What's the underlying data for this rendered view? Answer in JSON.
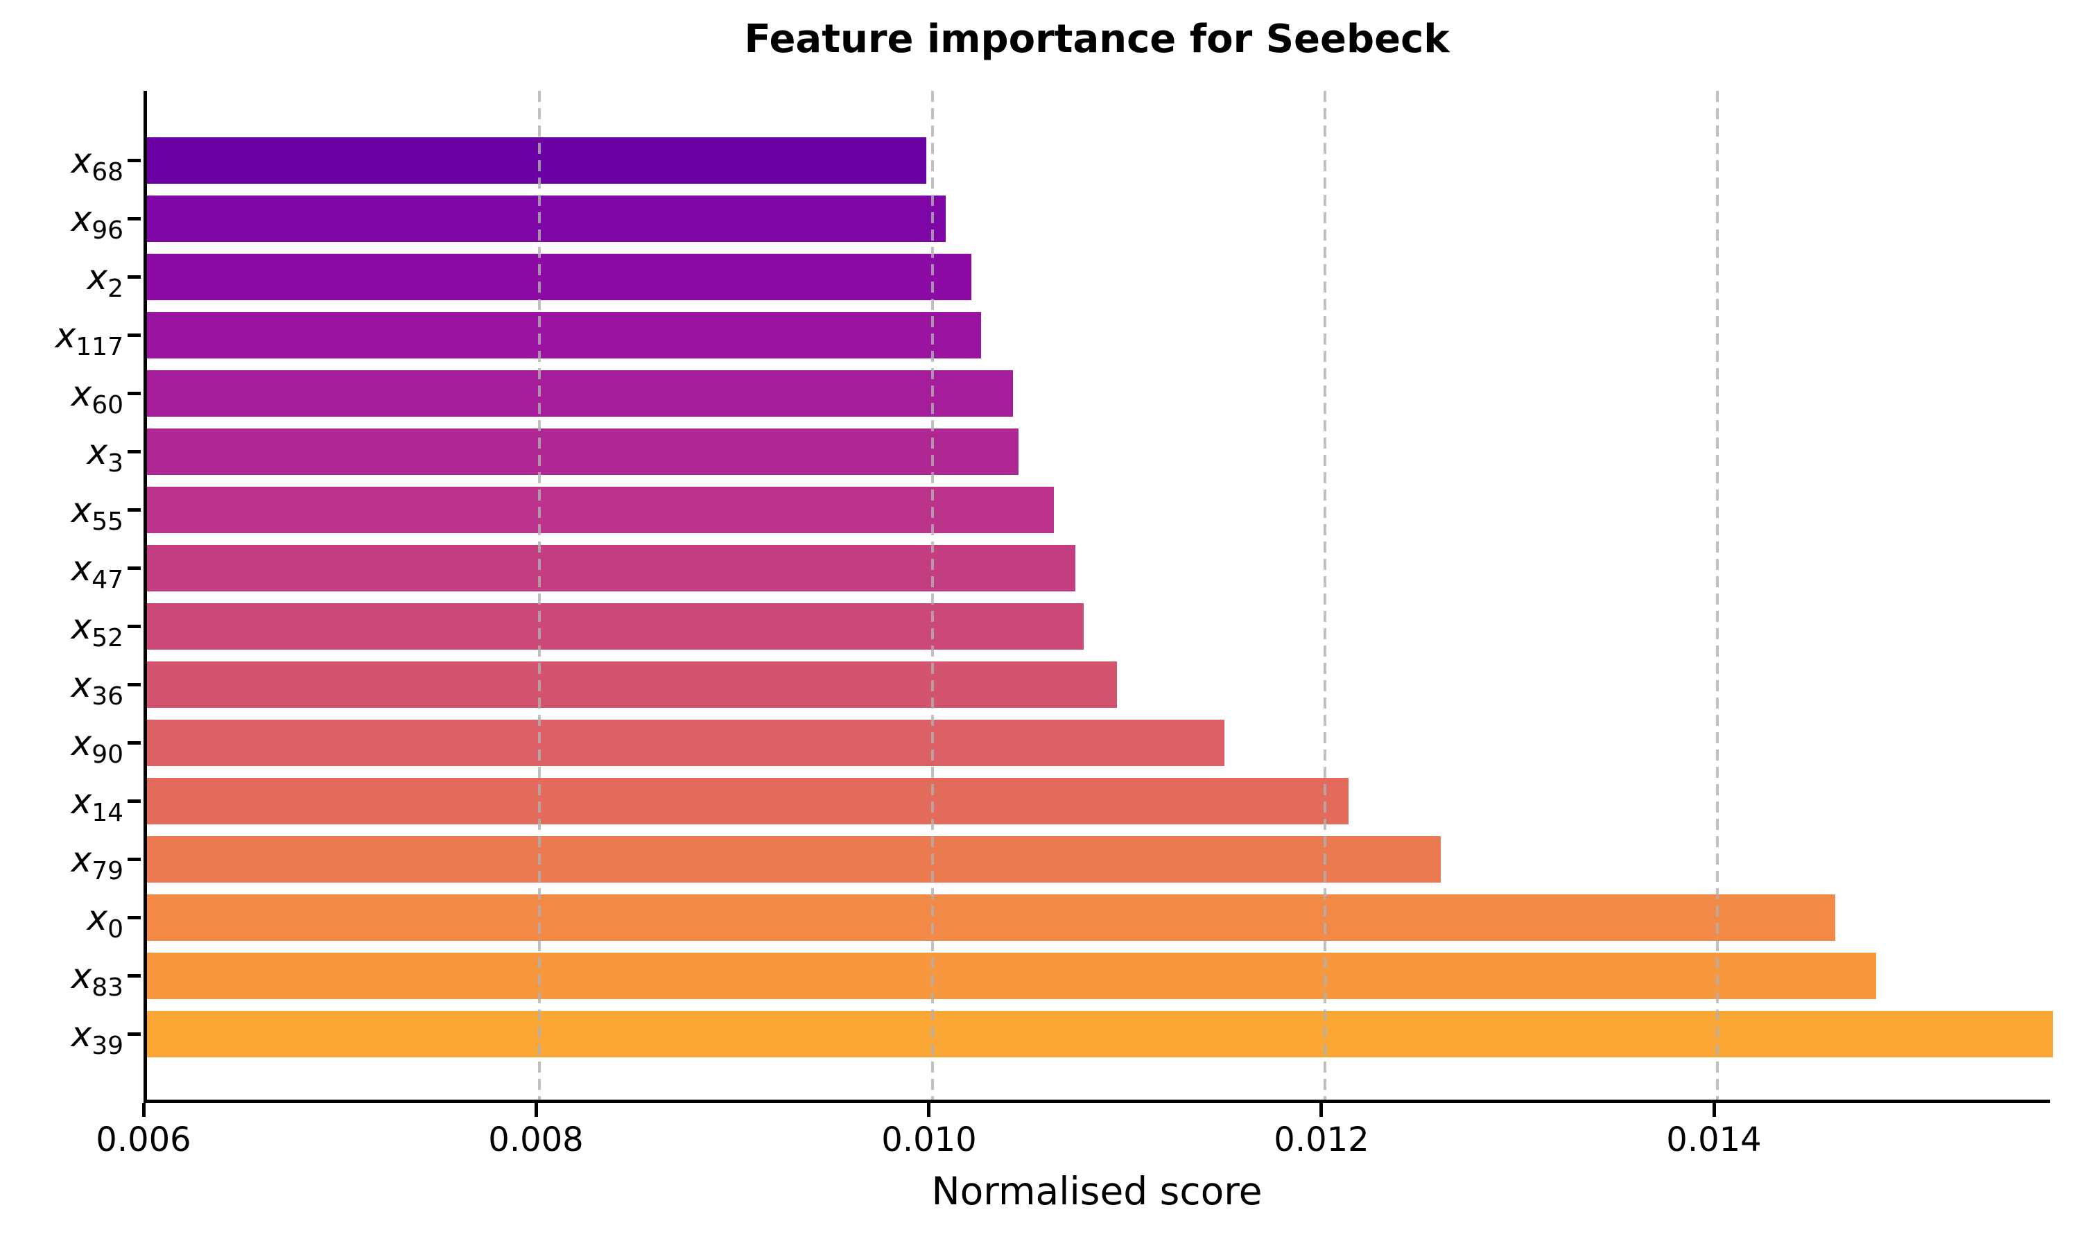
{
  "title": "Feature importance for Seebeck",
  "chart_data": {
    "type": "bar",
    "orientation": "horizontal",
    "title": "Feature importance for Seebeck",
    "xlabel": "Normalised score",
    "ylabel": "",
    "legend": "none",
    "grid": {
      "axis": "x",
      "style": "dashed",
      "color": "#b0b0b0",
      "on_top_of_bars": true
    },
    "colormap": "plasma",
    "category_base": "x",
    "category_subscripts": [
      "68",
      "96",
      "2",
      "117",
      "60",
      "3",
      "55",
      "47",
      "52",
      "36",
      "90",
      "14",
      "79",
      "0",
      "83",
      "39"
    ],
    "categories": [
      "x_68",
      "x_96",
      "x_2",
      "x_117",
      "x_60",
      "x_3",
      "x_55",
      "x_47",
      "x_52",
      "x_36",
      "x_90",
      "x_14",
      "x_79",
      "x_0",
      "x_83",
      "x_39"
    ],
    "values": [
      0.00997,
      0.01007,
      0.0102,
      0.01025,
      0.01041,
      0.01044,
      0.01062,
      0.01073,
      0.01077,
      0.01094,
      0.01149,
      0.01212,
      0.01259,
      0.0146,
      0.01481,
      0.01571
    ],
    "bar_colors": [
      "#6a01a3",
      "#7e06a7",
      "#8d0ba5",
      "#9a13a1",
      "#a51d9b",
      "#af2792",
      "#ba328a",
      "#c33d81",
      "#cb4878",
      "#d4536f",
      "#dc5f65",
      "#e36b5b",
      "#ec7a50",
      "#f28947",
      "#f7983e",
      "#fba736"
    ],
    "x_ticks": [
      0.006,
      0.008,
      0.01,
      0.012,
      0.014
    ],
    "x_tick_labels": [
      "0.006",
      "0.008",
      "0.010",
      "0.012",
      "0.014"
    ],
    "xlim": [
      0.006,
      0.015713
    ]
  }
}
